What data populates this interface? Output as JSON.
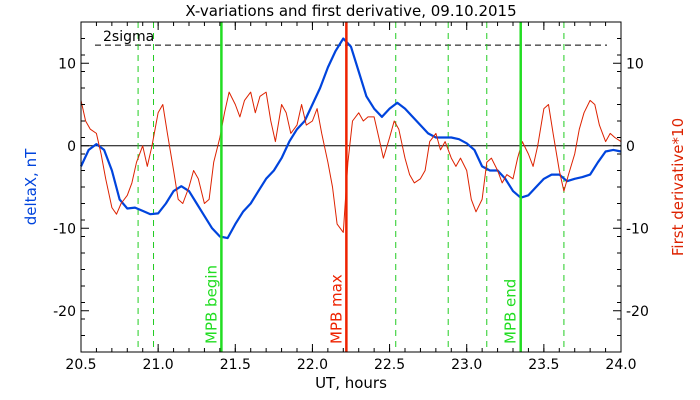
{
  "chart_data": {
    "type": "line",
    "title": "X-variations and first derivative, 09.10.2015",
    "xlabel": "UT, hours",
    "ylabel_left": "deltaX, nT",
    "ylabel_right": "First derivative*10",
    "xlim": [
      20.5,
      24.0
    ],
    "ylim": [
      -25,
      15
    ],
    "x_ticks": [
      "20.5",
      "21.0",
      "21.5",
      "22.0",
      "22.5",
      "23.0",
      "23.5",
      "24.0"
    ],
    "y_ticks": [
      "-20",
      "-10",
      "0",
      "10"
    ],
    "colors": {
      "deltaX": "#0044dd",
      "derivative": "#dd2200",
      "mpb_boundary": "#22dd22",
      "mpb_max": "#ee2200",
      "dashed_markers": "#22cc22",
      "zero_line": "#000000",
      "sigma_line": "#000000"
    },
    "sigma": {
      "label": "2sigma",
      "value": 12.2
    },
    "zero_line": 0,
    "markers": [
      {
        "x": 21.41,
        "label": "MPB begin",
        "color": "#22dd22"
      },
      {
        "x": 22.22,
        "label": "MPB max",
        "color": "#ee2200"
      },
      {
        "x": 23.35,
        "label": "MPB end",
        "color": "#22dd22"
      }
    ],
    "dashed_lines": [
      20.87,
      20.97,
      22.54,
      22.88,
      23.13,
      23.63
    ],
    "series": [
      {
        "name": "deltaX",
        "axis": "left",
        "x": [
          20.5,
          20.55,
          20.6,
          20.65,
          20.7,
          20.75,
          20.8,
          20.85,
          20.9,
          20.95,
          21.0,
          21.05,
          21.1,
          21.15,
          21.2,
          21.25,
          21.3,
          21.35,
          21.4,
          21.45,
          21.5,
          21.55,
          21.6,
          21.65,
          21.7,
          21.75,
          21.8,
          21.85,
          21.9,
          21.95,
          22.0,
          22.05,
          22.1,
          22.15,
          22.2,
          22.25,
          22.3,
          22.35,
          22.4,
          22.45,
          22.5,
          22.55,
          22.6,
          22.65,
          22.7,
          22.75,
          22.8,
          22.85,
          22.9,
          22.95,
          23.0,
          23.05,
          23.1,
          23.15,
          23.2,
          23.25,
          23.3,
          23.35,
          23.4,
          23.45,
          23.5,
          23.55,
          23.6,
          23.65,
          23.7,
          23.75,
          23.8,
          23.85,
          23.9,
          23.95,
          24.0
        ],
        "y": [
          -2.5,
          -0.5,
          0.2,
          -0.5,
          -3,
          -6.5,
          -7.6,
          -7.5,
          -7.9,
          -8.3,
          -8.2,
          -7,
          -5.5,
          -4.9,
          -5.5,
          -7,
          -8.5,
          -10,
          -11,
          -11.2,
          -9.5,
          -8,
          -7,
          -5.5,
          -4,
          -3,
          -1.5,
          0.5,
          2,
          3,
          5,
          7,
          9.5,
          11.5,
          13,
          12,
          9,
          6,
          4.5,
          3.5,
          4.5,
          5.2,
          4.5,
          3.5,
          2.5,
          1.5,
          1.0,
          1.0,
          1.0,
          0.8,
          0.3,
          -0.5,
          -2.5,
          -3,
          -3,
          -4,
          -5.5,
          -6.3,
          -6,
          -5,
          -4,
          -3.5,
          -3.5,
          -4.3,
          -4,
          -3.8,
          -3.5,
          -2,
          -0.7,
          -0.5,
          -0.7
        ]
      },
      {
        "name": "First derivative*10",
        "axis": "right",
        "x": [
          20.5,
          20.53,
          20.56,
          20.6,
          20.63,
          20.66,
          20.7,
          20.73,
          20.76,
          20.8,
          20.83,
          20.86,
          20.9,
          20.93,
          20.96,
          21.0,
          21.03,
          21.06,
          21.1,
          21.13,
          21.16,
          21.2,
          21.23,
          21.26,
          21.3,
          21.33,
          21.36,
          21.4,
          21.43,
          21.46,
          21.5,
          21.53,
          21.56,
          21.6,
          21.63,
          21.66,
          21.7,
          21.73,
          21.76,
          21.8,
          21.83,
          21.86,
          21.9,
          21.93,
          21.96,
          22.0,
          22.03,
          22.06,
          22.1,
          22.13,
          22.16,
          22.2,
          22.23,
          22.26,
          22.3,
          22.33,
          22.36,
          22.4,
          22.43,
          22.46,
          22.5,
          22.53,
          22.56,
          22.6,
          22.63,
          22.66,
          22.7,
          22.73,
          22.76,
          22.8,
          22.83,
          22.86,
          22.9,
          22.93,
          22.96,
          23.0,
          23.03,
          23.06,
          23.1,
          23.13,
          23.16,
          23.2,
          23.23,
          23.26,
          23.3,
          23.33,
          23.36,
          23.4,
          23.43,
          23.46,
          23.5,
          23.53,
          23.56,
          23.6,
          23.63,
          23.66,
          23.7,
          23.73,
          23.76,
          23.8,
          23.83,
          23.86,
          23.9,
          23.93,
          23.96,
          24.0
        ],
        "y": [
          5.5,
          3,
          2,
          1.5,
          -1,
          -4,
          -7.5,
          -8.3,
          -7,
          -6,
          -4.5,
          -2,
          0,
          -2.5,
          0,
          4,
          5,
          1.5,
          -3,
          -6.5,
          -7,
          -5,
          -3,
          -4,
          -7,
          -6.5,
          -2,
          1,
          4,
          6.5,
          5,
          3.5,
          5.5,
          6.5,
          4,
          6,
          6.5,
          3,
          0.5,
          5,
          4,
          1.5,
          2.5,
          5,
          2.5,
          3,
          4.5,
          1.5,
          -2,
          -5,
          -9.5,
          -10.5,
          -2,
          3,
          4,
          3,
          3.5,
          3.5,
          1,
          -1.5,
          1,
          3,
          2,
          -1.5,
          -3.5,
          -4.5,
          -4,
          -3,
          0.5,
          1.5,
          -0.5,
          0.5,
          -1.5,
          -2.5,
          -1.5,
          -3,
          -6.5,
          -8,
          -6.5,
          -2,
          -1.5,
          -3,
          -4.5,
          -3.5,
          -4,
          -1.5,
          0.5,
          -1,
          -2.5,
          0,
          4.5,
          5,
          1.5,
          -3,
          -5.5,
          -3.5,
          -1,
          2,
          4,
          5.5,
          5,
          2.5,
          0.5,
          1.5,
          1,
          0.5
        ]
      }
    ]
  }
}
